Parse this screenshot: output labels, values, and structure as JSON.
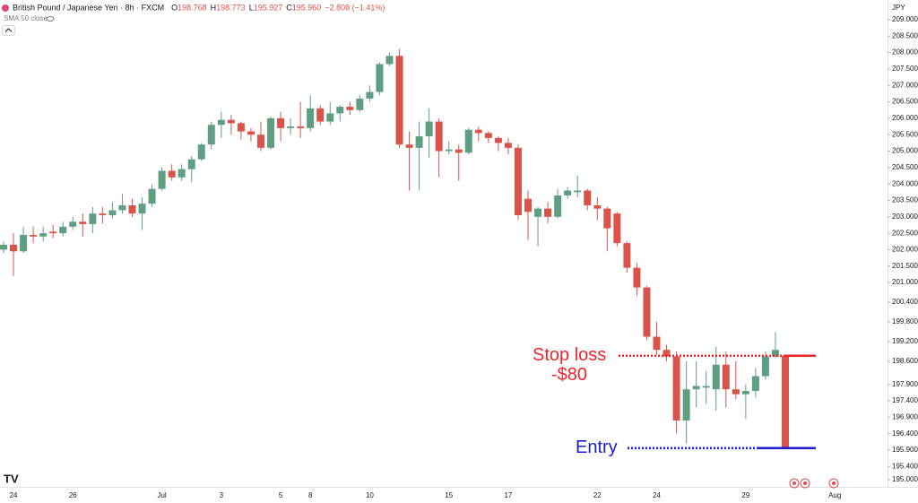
{
  "header": {
    "symbol": "British Pound / Japanese Yen · 8h · FXCM",
    "ohlc_labels": [
      "O",
      "H",
      "L",
      "C"
    ],
    "ohlc_values": [
      "198.768",
      "198.773",
      "195.927",
      "195.960"
    ],
    "change": "−2.808 (−1.41%)",
    "indicator": "SMA 50 close",
    "currency": "JPY"
  },
  "chart_data": {
    "type": "candlestick",
    "up_color": "#5f9e80",
    "down_color": "#d9534a",
    "categories": [
      null,
      "24",
      null,
      null,
      null,
      null,
      null,
      "26",
      null,
      null,
      null,
      null,
      null,
      null,
      null,
      null,
      "Jul",
      null,
      null,
      null,
      null,
      null,
      "3",
      null,
      null,
      null,
      null,
      null,
      "5",
      null,
      null,
      "8",
      null,
      null,
      null,
      null,
      null,
      "10",
      null,
      null,
      null,
      null,
      null,
      null,
      null,
      "15",
      null,
      null,
      null,
      null,
      null,
      "17",
      null,
      null,
      null,
      null,
      null,
      null,
      null,
      null,
      "22",
      null,
      null,
      null,
      null,
      null,
      "24",
      null,
      null,
      null,
      null,
      null,
      null,
      null,
      null,
      "29",
      null,
      null,
      null,
      null,
      null,
      null,
      null,
      null,
      "Aug",
      null,
      null,
      null,
      null
    ],
    "open": [
      202.0,
      202.15,
      201.95,
      202.45,
      202.4,
      202.55,
      202.5,
      202.7,
      202.85,
      202.78,
      203.1,
      203.05,
      203.2,
      203.35,
      203.1,
      203.4,
      203.85,
      204.4,
      204.2,
      204.45,
      204.75,
      205.2,
      205.8,
      205.95,
      205.85,
      205.6,
      205.5,
      205.1,
      206.0,
      205.7,
      205.75,
      205.7,
      206.3,
      205.9,
      206.15,
      206.35,
      206.25,
      206.6,
      206.8,
      207.65,
      207.9,
      205.2,
      205.1,
      205.45,
      205.9,
      205.0,
      205.05,
      204.95,
      205.65,
      205.55,
      205.4,
      205.25,
      205.1,
      203.55,
      203.0,
      203.25,
      203.0,
      203.65,
      203.75,
      203.8,
      203.35,
      203.25,
      203.1,
      202.2,
      201.45,
      200.85,
      199.35,
      198.95,
      198.75,
      196.8,
      197.75,
      197.8,
      197.75,
      198.5,
      197.75,
      197.6,
      197.7,
      198.15,
      198.75,
      198.768,
      null,
      null,
      null,
      null,
      null,
      null,
      null,
      null,
      null
    ],
    "high": [
      202.25,
      202.5,
      202.7,
      202.7,
      202.7,
      202.75,
      202.85,
      203.0,
      203.1,
      203.3,
      203.3,
      203.45,
      203.7,
      203.55,
      203.6,
      204.0,
      204.5,
      204.6,
      204.6,
      204.85,
      205.25,
      205.9,
      206.2,
      206.1,
      205.9,
      205.7,
      205.9,
      206.05,
      206.2,
      206.0,
      206.5,
      206.7,
      206.4,
      206.5,
      206.4,
      206.5,
      206.7,
      207.0,
      207.7,
      208.0,
      208.1,
      205.6,
      205.9,
      206.3,
      206.0,
      205.3,
      205.2,
      205.7,
      205.75,
      205.6,
      205.45,
      205.4,
      205.2,
      203.8,
      203.3,
      203.45,
      203.85,
      203.9,
      204.25,
      203.85,
      203.6,
      203.3,
      203.15,
      202.25,
      201.6,
      200.9,
      199.8,
      199.1,
      198.9,
      198.6,
      198.6,
      198.3,
      199.05,
      198.9,
      198.6,
      197.9,
      198.4,
      198.9,
      199.5,
      198.773,
      null,
      null,
      null,
      null,
      null,
      null,
      null,
      null,
      null
    ],
    "low": [
      201.9,
      201.2,
      201.9,
      202.2,
      202.25,
      202.35,
      202.4,
      202.6,
      202.4,
      202.5,
      202.8,
      202.95,
      203.1,
      203.0,
      202.6,
      203.3,
      203.8,
      204.1,
      204.1,
      204.05,
      204.7,
      205.05,
      205.4,
      205.5,
      205.35,
      205.3,
      205.0,
      205.05,
      205.3,
      205.5,
      205.4,
      205.6,
      205.8,
      205.8,
      205.9,
      206.1,
      206.2,
      206.5,
      206.7,
      207.6,
      205.1,
      203.8,
      203.8,
      204.8,
      204.2,
      204.9,
      204.1,
      204.9,
      205.3,
      205.25,
      205.0,
      204.9,
      202.9,
      202.3,
      202.1,
      202.8,
      202.95,
      203.55,
      203.6,
      203.2,
      202.9,
      201.95,
      202.1,
      201.3,
      200.6,
      199.25,
      198.8,
      198.6,
      196.4,
      196.1,
      197.2,
      197.3,
      197.1,
      197.2,
      197.45,
      196.85,
      197.5,
      198.05,
      198.7,
      195.927,
      null,
      null,
      null,
      null,
      null,
      null,
      null,
      null,
      null
    ],
    "close": [
      202.15,
      201.95,
      202.45,
      202.4,
      202.5,
      202.5,
      202.7,
      202.85,
      202.78,
      203.1,
      203.05,
      203.2,
      203.35,
      203.1,
      203.4,
      203.85,
      204.4,
      204.2,
      204.45,
      204.75,
      205.2,
      205.8,
      205.95,
      205.85,
      205.6,
      205.5,
      205.1,
      206.0,
      205.7,
      205.75,
      205.7,
      206.3,
      205.9,
      206.15,
      206.35,
      206.25,
      206.6,
      206.8,
      207.65,
      207.9,
      205.2,
      205.1,
      205.45,
      205.9,
      205.0,
      205.05,
      204.95,
      205.65,
      205.55,
      205.4,
      205.25,
      205.1,
      203.05,
      203.15,
      203.25,
      203.0,
      203.65,
      203.8,
      203.8,
      203.35,
      203.25,
      202.65,
      202.2,
      201.45,
      200.85,
      199.35,
      198.95,
      198.75,
      196.8,
      197.75,
      197.85,
      197.85,
      198.5,
      197.75,
      197.6,
      197.7,
      198.15,
      198.75,
      198.95,
      195.96,
      null,
      null,
      null,
      null,
      null,
      null,
      null,
      null,
      null
    ],
    "ylim": [
      194.78,
      209.6
    ],
    "yticks": [
      {
        "value": 195.0,
        "label": "195.000"
      },
      {
        "value": 195.4,
        "label": "195.400"
      },
      {
        "value": 195.9,
        "label": "195.900"
      },
      {
        "value": 196.4,
        "label": "196.400"
      },
      {
        "value": 196.9,
        "label": "196.900"
      },
      {
        "value": 197.4,
        "label": "197.400"
      },
      {
        "value": 197.9,
        "label": "197.900"
      },
      {
        "value": 198.6,
        "label": "198.600"
      },
      {
        "value": 199.2,
        "label": "199.200"
      },
      {
        "value": 199.8,
        "label": "199.800"
      },
      {
        "value": 200.4,
        "label": "200.400"
      },
      {
        "value": 201.0,
        "label": "201.000"
      },
      {
        "value": 201.5,
        "label": "201.500"
      },
      {
        "value": 202.0,
        "label": "202.000"
      },
      {
        "value": 202.5,
        "label": "202.500"
      },
      {
        "value": 203.0,
        "label": "203.000"
      },
      {
        "value": 203.5,
        "label": "203.500"
      },
      {
        "value": 204.0,
        "label": "204.000"
      },
      {
        "value": 204.5,
        "label": "204.500"
      },
      {
        "value": 205.0,
        "label": "205.000"
      },
      {
        "value": 205.5,
        "label": "205.500"
      },
      {
        "value": 206.0,
        "label": "206.000"
      },
      {
        "value": 206.5,
        "label": "206.500"
      },
      {
        "value": 207.0,
        "label": "207.000"
      },
      {
        "value": 207.5,
        "label": "207.500"
      },
      {
        "value": 208.0,
        "label": "208.000"
      },
      {
        "value": 208.5,
        "label": "208.500"
      },
      {
        "value": 209.0,
        "label": "209.000"
      }
    ],
    "grid": false,
    "levels": [
      {
        "label": "Stop loss",
        "sublabel": "-$80",
        "value": 198.77,
        "color": "#e8262b"
      },
      {
        "label": "Entry",
        "value": 195.96,
        "color": "#1c1cd8"
      }
    ]
  }
}
